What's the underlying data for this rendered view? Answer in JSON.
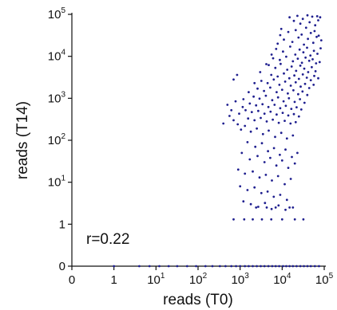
{
  "chart_data": {
    "type": "scatter",
    "title": "",
    "xlabel": "reads (T0)",
    "ylabel": "reads (T14)",
    "x_scale": "symlog",
    "y_scale": "symlog",
    "xlim": [
      0,
      100000
    ],
    "ylim": [
      0,
      100000
    ],
    "x_ticks": [
      {
        "value": 0,
        "base": "0",
        "exp": ""
      },
      {
        "value": 1,
        "base": "1",
        "exp": ""
      },
      {
        "value": 10,
        "base": "10",
        "exp": "1"
      },
      {
        "value": 100,
        "base": "10",
        "exp": "2"
      },
      {
        "value": 1000,
        "base": "10",
        "exp": "3"
      },
      {
        "value": 10000,
        "base": "10",
        "exp": "4"
      },
      {
        "value": 100000,
        "base": "10",
        "exp": "5"
      }
    ],
    "y_ticks": [
      {
        "value": 0,
        "base": "0",
        "exp": ""
      },
      {
        "value": 1,
        "base": "1",
        "exp": ""
      },
      {
        "value": 10,
        "base": "10",
        "exp": "1"
      },
      {
        "value": 100,
        "base": "10",
        "exp": "2"
      },
      {
        "value": 1000,
        "base": "10",
        "exp": "3"
      },
      {
        "value": 10000,
        "base": "10",
        "exp": "4"
      },
      {
        "value": 100000,
        "base": "10",
        "exp": "5"
      }
    ],
    "annotation": "r=0.22",
    "marker_color": "#1f1f8f",
    "grid": false,
    "points": [
      [
        15000,
        85000
      ],
      [
        23000,
        92000
      ],
      [
        31000,
        78000
      ],
      [
        40000,
        95000
      ],
      [
        52000,
        88000
      ],
      [
        68000,
        90000
      ],
      [
        80000,
        85000
      ],
      [
        19000,
        70000
      ],
      [
        27000,
        60000
      ],
      [
        45000,
        65000
      ],
      [
        61000,
        55000
      ],
      [
        72000,
        72000
      ],
      [
        9500,
        45000
      ],
      [
        14000,
        38000
      ],
      [
        21000,
        42000
      ],
      [
        29000,
        33000
      ],
      [
        37000,
        48000
      ],
      [
        48000,
        36000
      ],
      [
        59000,
        40000
      ],
      [
        74000,
        31000
      ],
      [
        11000,
        25000
      ],
      [
        17500,
        22000
      ],
      [
        24500,
        28000
      ],
      [
        33000,
        19000
      ],
      [
        41000,
        26000
      ],
      [
        55000,
        21000
      ],
      [
        66000,
        29000
      ],
      [
        85000,
        24000
      ],
      [
        7200,
        15000
      ],
      [
        10500,
        13000
      ],
      [
        15500,
        17000
      ],
      [
        20500,
        11000
      ],
      [
        26000,
        14500
      ],
      [
        32000,
        12500
      ],
      [
        39000,
        16000
      ],
      [
        47000,
        10500
      ],
      [
        57000,
        13500
      ],
      [
        69000,
        11500
      ],
      [
        82000,
        15500
      ],
      [
        6100,
        9000
      ],
      [
        8800,
        8200
      ],
      [
        12500,
        9800
      ],
      [
        18000,
        7600
      ],
      [
        23500,
        8800
      ],
      [
        29500,
        7000
      ],
      [
        36000,
        9300
      ],
      [
        44000,
        7800
      ],
      [
        53000,
        8500
      ],
      [
        64000,
        6800
      ],
      [
        78000,
        7300
      ],
      [
        4800,
        6200
      ],
      [
        6900,
        5300
      ],
      [
        9200,
        6600
      ],
      [
        13200,
        4800
      ],
      [
        16800,
        5700
      ],
      [
        21500,
        4500
      ],
      [
        27000,
        6000
      ],
      [
        33500,
        5100
      ],
      [
        41500,
        4200
      ],
      [
        50500,
        5500
      ],
      [
        62000,
        4400
      ],
      [
        5500,
        3600
      ],
      [
        7800,
        3300
      ],
      [
        11000,
        3900
      ],
      [
        14800,
        3000
      ],
      [
        19500,
        3500
      ],
      [
        25000,
        2900
      ],
      [
        31000,
        3700
      ],
      [
        38500,
        3100
      ],
      [
        48000,
        2700
      ],
      [
        58000,
        3400
      ],
      [
        72000,
        3000
      ],
      [
        3200,
        2600
      ],
      [
        4500,
        2300
      ],
      [
        6300,
        2800
      ],
      [
        8600,
        2100
      ],
      [
        11800,
        2500
      ],
      [
        16000,
        2000
      ],
      [
        21000,
        2400
      ],
      [
        27500,
        1900
      ],
      [
        35000,
        2200
      ],
      [
        44000,
        1750
      ],
      [
        56000,
        2100
      ],
      [
        2600,
        1700
      ],
      [
        3700,
        1500
      ],
      [
        5200,
        1800
      ],
      [
        7400,
        1400
      ],
      [
        10000,
        1600
      ],
      [
        13600,
        1300
      ],
      [
        18500,
        1550
      ],
      [
        24000,
        1250
      ],
      [
        30500,
        1450
      ],
      [
        39500,
        1200
      ],
      [
        2100,
        1100
      ],
      [
        2900,
        980
      ],
      [
        4100,
        1150
      ],
      [
        5800,
        900
      ],
      [
        8000,
        1050
      ],
      [
        10800,
        850
      ],
      [
        14500,
        1000
      ],
      [
        19800,
        820
      ],
      [
        26500,
        950
      ],
      [
        34000,
        780
      ],
      [
        1700,
        750
      ],
      [
        2400,
        680
      ],
      [
        3400,
        720
      ],
      [
        4700,
        620
      ],
      [
        6600,
        700
      ],
      [
        9000,
        580
      ],
      [
        12200,
        660
      ],
      [
        16500,
        560
      ],
      [
        22000,
        610
      ],
      [
        28500,
        540
      ],
      [
        1350,
        520
      ],
      [
        1900,
        470
      ],
      [
        2700,
        500
      ],
      [
        3800,
        430
      ],
      [
        5300,
        480
      ],
      [
        7400,
        410
      ],
      [
        10300,
        450
      ],
      [
        14000,
        390
      ],
      [
        19000,
        420
      ],
      [
        25000,
        370
      ],
      [
        1550,
        330
      ],
      [
        2200,
        300
      ],
      [
        3100,
        340
      ],
      [
        4300,
        280
      ],
      [
        6000,
        310
      ],
      [
        8300,
        260
      ],
      [
        11500,
        290
      ],
      [
        15800,
        250
      ],
      [
        21000,
        270
      ],
      [
        500,
        700
      ],
      [
        620,
        520
      ],
      [
        780,
        850
      ],
      [
        950,
        430
      ],
      [
        1150,
        620
      ],
      [
        560,
        380
      ],
      [
        700,
        300
      ],
      [
        880,
        240
      ],
      [
        400,
        250
      ],
      [
        1050,
        180
      ],
      [
        1300,
        220
      ],
      [
        1800,
        160
      ],
      [
        2500,
        190
      ],
      [
        3500,
        140
      ],
      [
        4800,
        170
      ],
      [
        6800,
        120
      ],
      [
        9500,
        150
      ],
      [
        13000,
        110
      ],
      [
        18000,
        130
      ],
      [
        700,
        2800
      ],
      [
        850,
        3600
      ],
      [
        3000,
        4200
      ],
      [
        4200,
        6500
      ],
      [
        5600,
        11000
      ],
      [
        7800,
        20000
      ],
      [
        9000,
        32000
      ],
      [
        2200,
        2300
      ],
      [
        1600,
        1400
      ],
      [
        1200,
        950
      ],
      [
        1500,
        90
      ],
      [
        2300,
        70
      ],
      [
        3300,
        85
      ],
      [
        4600,
        55
      ],
      [
        6400,
        65
      ],
      [
        8800,
        45
      ],
      [
        12000,
        60
      ],
      [
        17000,
        40
      ],
      [
        23000,
        50
      ],
      [
        1100,
        50
      ],
      [
        1700,
        35
      ],
      [
        2600,
        42
      ],
      [
        3800,
        30
      ],
      [
        5200,
        38
      ],
      [
        7300,
        25
      ],
      [
        10000,
        33
      ],
      [
        14000,
        22
      ],
      [
        20000,
        28
      ],
      [
        900,
        20
      ],
      [
        1300,
        16
      ],
      [
        2000,
        18
      ],
      [
        2900,
        13
      ],
      [
        4100,
        15
      ],
      [
        5700,
        11
      ],
      [
        8000,
        14
      ],
      [
        11500,
        9
      ],
      [
        16000,
        12
      ],
      [
        1000,
        8
      ],
      [
        1500,
        6.5
      ],
      [
        2200,
        7.5
      ],
      [
        3200,
        5.5
      ],
      [
        4500,
        6
      ],
      [
        6300,
        4.5
      ],
      [
        9000,
        5
      ],
      [
        13000,
        3.8
      ],
      [
        1200,
        3.5
      ],
      [
        1800,
        3
      ],
      [
        2700,
        2.6
      ],
      [
        3900,
        3.2
      ],
      [
        5600,
        2.3
      ],
      [
        8200,
        2.8
      ],
      [
        12000,
        2.2
      ],
      [
        18000,
        2.5
      ],
      [
        2400,
        2.5
      ],
      [
        4300,
        2.5
      ],
      [
        7000,
        2.5
      ],
      [
        15000,
        2.5
      ],
      [
        700,
        1.3
      ],
      [
        1250,
        1.3
      ],
      [
        2000,
        1.3
      ],
      [
        3300,
        1.3
      ],
      [
        5500,
        1.3
      ],
      [
        10000,
        1.3
      ],
      [
        20000,
        1.3
      ],
      [
        32000,
        1.3
      ],
      [
        1,
        0
      ],
      [
        4,
        0
      ],
      [
        7,
        0
      ],
      [
        12,
        0
      ],
      [
        20,
        0
      ],
      [
        32,
        0
      ],
      [
        55,
        0
      ],
      [
        90,
        0
      ],
      [
        150,
        0
      ],
      [
        220,
        0
      ],
      [
        330,
        0
      ],
      [
        450,
        0
      ],
      [
        620,
        0
      ],
      [
        800,
        0
      ],
      [
        1000,
        0
      ],
      [
        1300,
        0
      ],
      [
        1600,
        0
      ],
      [
        2000,
        0
      ],
      [
        2500,
        0
      ],
      [
        3100,
        0
      ],
      [
        3800,
        0
      ],
      [
        4700,
        0
      ],
      [
        5800,
        0
      ],
      [
        7000,
        0
      ],
      [
        8500,
        0
      ],
      [
        10500,
        0
      ],
      [
        12500,
        0
      ],
      [
        15000,
        0
      ],
      [
        18000,
        0
      ],
      [
        22000,
        0
      ],
      [
        27000,
        0
      ],
      [
        33000,
        0
      ],
      [
        40000,
        0
      ],
      [
        48000,
        0
      ],
      [
        60000,
        0
      ],
      [
        75000,
        0
      ]
    ]
  }
}
